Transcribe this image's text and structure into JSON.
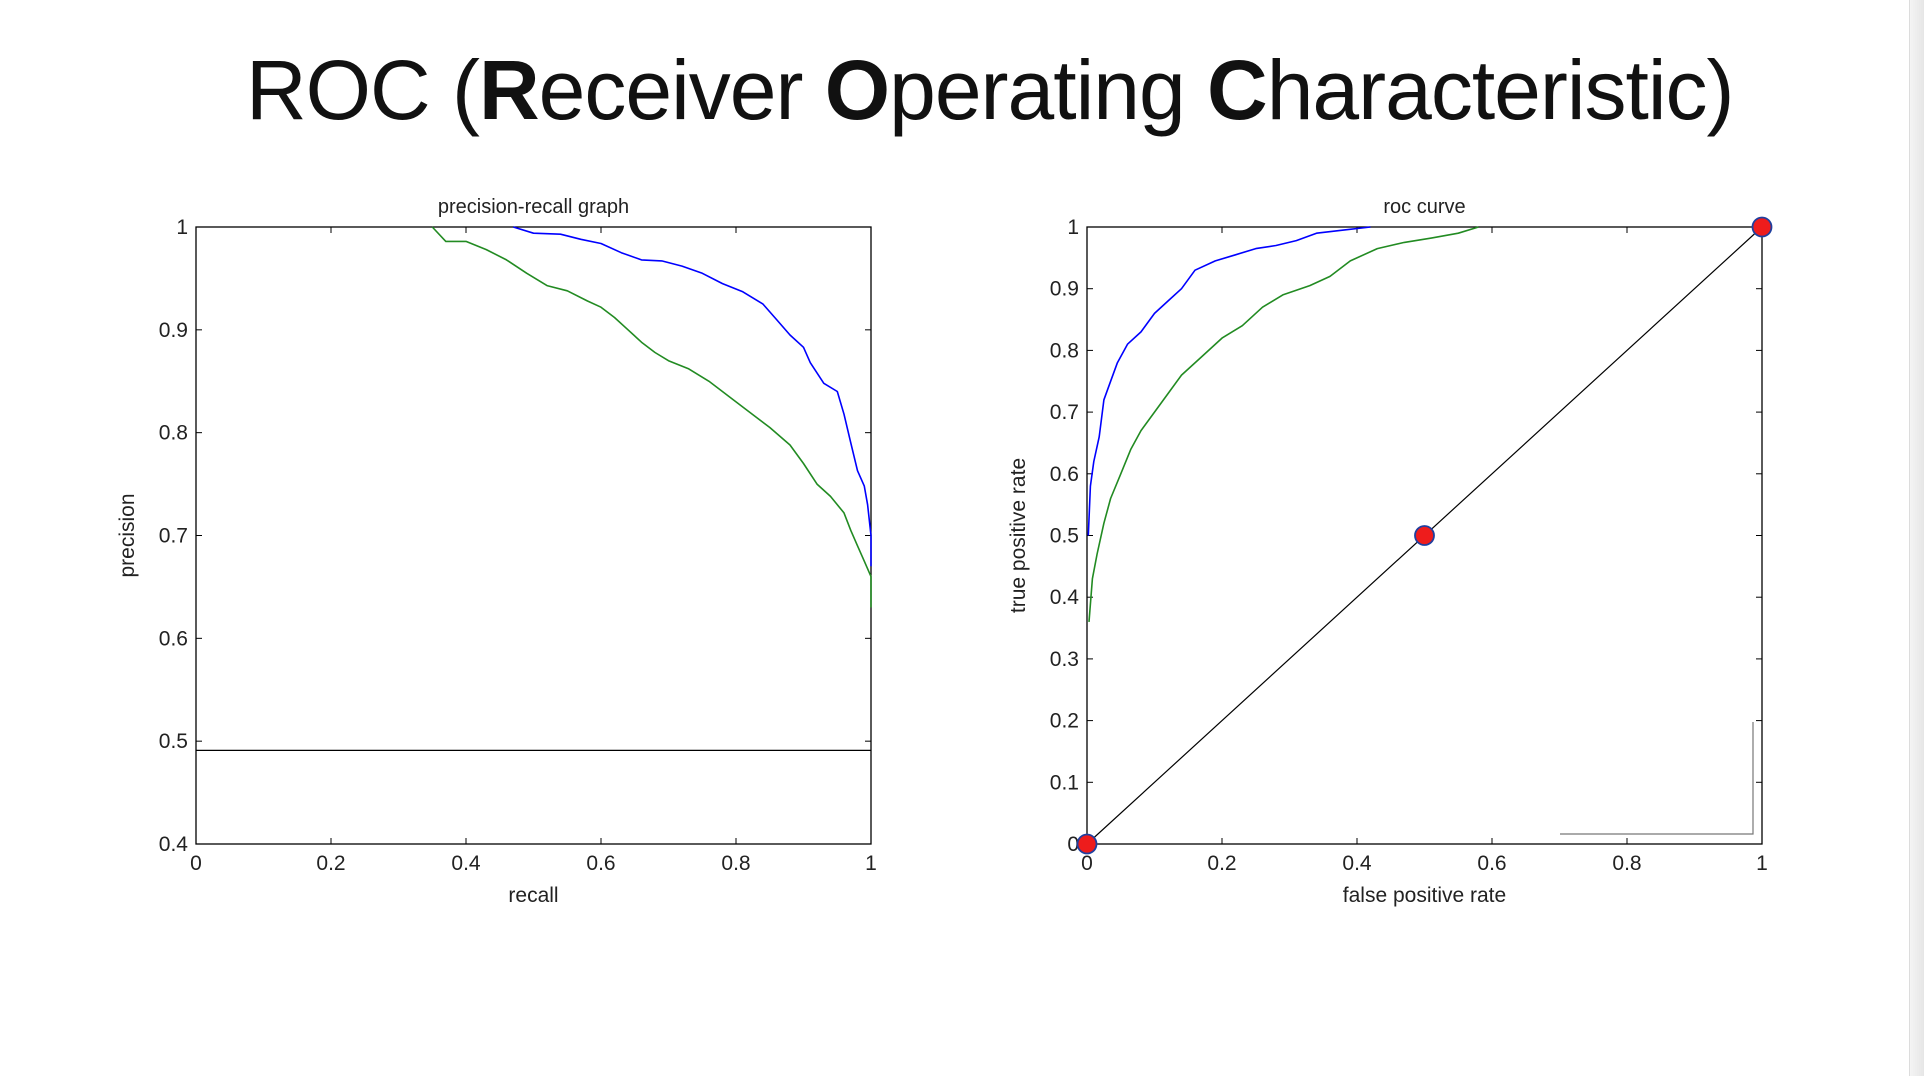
{
  "slide": {
    "title_parts": [
      {
        "text": "ROC (",
        "bold": false
      },
      {
        "text": "R",
        "bold": true
      },
      {
        "text": "eceiver ",
        "bold": false
      },
      {
        "text": "O",
        "bold": true
      },
      {
        "text": "perating ",
        "bold": false
      },
      {
        "text": "C",
        "bold": true
      },
      {
        "text": "haracteristic)",
        "bold": false
      }
    ]
  },
  "chart_data": [
    {
      "type": "line",
      "title": "precision-recall graph",
      "xlabel": "recall",
      "ylabel": "precision",
      "xlim": [
        0,
        1
      ],
      "ylim": [
        0.4,
        1
      ],
      "xticks": [
        0,
        0.2,
        0.4,
        0.6,
        0.8,
        1
      ],
      "xtick_labels": [
        "0",
        "0.2",
        "0.4",
        "0.6",
        "0.8",
        "1"
      ],
      "yticks": [
        0.4,
        0.5,
        0.6,
        0.7,
        0.8,
        0.9,
        1
      ],
      "ytick_labels": [
        "0.4",
        "0.5",
        "0.6",
        "0.7",
        "0.8",
        "0.9",
        "1"
      ],
      "grid": false,
      "series": [
        {
          "color": "#0000ff",
          "points": [
            [
              0.47,
              1.0
            ],
            [
              0.5,
              0.994
            ],
            [
              0.54,
              0.993
            ],
            [
              0.57,
              0.988
            ],
            [
              0.6,
              0.984
            ],
            [
              0.63,
              0.975
            ],
            [
              0.66,
              0.968
            ],
            [
              0.69,
              0.967
            ],
            [
              0.72,
              0.962
            ],
            [
              0.75,
              0.955
            ],
            [
              0.78,
              0.945
            ],
            [
              0.81,
              0.937
            ],
            [
              0.84,
              0.925
            ],
            [
              0.86,
              0.91
            ],
            [
              0.88,
              0.895
            ],
            [
              0.9,
              0.883
            ],
            [
              0.91,
              0.868
            ],
            [
              0.93,
              0.848
            ],
            [
              0.95,
              0.84
            ],
            [
              0.96,
              0.818
            ],
            [
              0.97,
              0.79
            ],
            [
              0.98,
              0.763
            ],
            [
              0.99,
              0.748
            ],
            [
              0.995,
              0.73
            ],
            [
              1.0,
              0.7
            ],
            [
              1.0,
              0.67
            ]
          ]
        },
        {
          "color": "#228b22",
          "points": [
            [
              0.35,
              1.0
            ],
            [
              0.37,
              0.986
            ],
            [
              0.4,
              0.986
            ],
            [
              0.43,
              0.978
            ],
            [
              0.46,
              0.968
            ],
            [
              0.49,
              0.955
            ],
            [
              0.52,
              0.943
            ],
            [
              0.55,
              0.938
            ],
            [
              0.58,
              0.928
            ],
            [
              0.6,
              0.922
            ],
            [
              0.62,
              0.912
            ],
            [
              0.64,
              0.9
            ],
            [
              0.66,
              0.888
            ],
            [
              0.68,
              0.878
            ],
            [
              0.7,
              0.87
            ],
            [
              0.73,
              0.862
            ],
            [
              0.76,
              0.85
            ],
            [
              0.79,
              0.835
            ],
            [
              0.82,
              0.82
            ],
            [
              0.85,
              0.805
            ],
            [
              0.88,
              0.788
            ],
            [
              0.9,
              0.77
            ],
            [
              0.92,
              0.75
            ],
            [
              0.94,
              0.738
            ],
            [
              0.96,
              0.722
            ],
            [
              0.97,
              0.705
            ],
            [
              0.98,
              0.69
            ],
            [
              0.99,
              0.675
            ],
            [
              1.0,
              0.66
            ],
            [
              1.0,
              0.63
            ]
          ]
        },
        {
          "color": "#000000",
          "points": [
            [
              0,
              0.491
            ],
            [
              1,
              0.491
            ]
          ]
        }
      ]
    },
    {
      "type": "line",
      "title": "roc curve",
      "xlabel": "false positive rate",
      "ylabel": "true positive rate",
      "xlim": [
        0,
        1
      ],
      "ylim": [
        0,
        1
      ],
      "xticks": [
        0,
        0.2,
        0.4,
        0.6,
        0.8,
        1
      ],
      "xtick_labels": [
        "0",
        "0.2",
        "0.4",
        "0.6",
        "0.8",
        "1"
      ],
      "yticks": [
        0,
        0.1,
        0.2,
        0.3,
        0.4,
        0.5,
        0.6,
        0.7,
        0.8,
        0.9,
        1
      ],
      "ytick_labels": [
        "0",
        "0.1",
        "0.2",
        "0.3",
        "0.4",
        "0.5",
        "0.6",
        "0.7",
        "0.8",
        "0.9",
        "1"
      ],
      "grid": false,
      "series": [
        {
          "color": "#0000ff",
          "points": [
            [
              0.002,
              0.5
            ],
            [
              0.005,
              0.58
            ],
            [
              0.01,
              0.62
            ],
            [
              0.018,
              0.66
            ],
            [
              0.025,
              0.72
            ],
            [
              0.035,
              0.75
            ],
            [
              0.045,
              0.78
            ],
            [
              0.06,
              0.81
            ],
            [
              0.08,
              0.83
            ],
            [
              0.1,
              0.86
            ],
            [
              0.12,
              0.88
            ],
            [
              0.14,
              0.9
            ],
            [
              0.16,
              0.93
            ],
            [
              0.19,
              0.945
            ],
            [
              0.22,
              0.955
            ],
            [
              0.25,
              0.965
            ],
            [
              0.28,
              0.97
            ],
            [
              0.31,
              0.978
            ],
            [
              0.34,
              0.99
            ],
            [
              0.38,
              0.995
            ],
            [
              0.42,
              1.0
            ]
          ]
        },
        {
          "color": "#228b22",
          "points": [
            [
              0.003,
              0.36
            ],
            [
              0.008,
              0.43
            ],
            [
              0.015,
              0.47
            ],
            [
              0.025,
              0.52
            ],
            [
              0.035,
              0.56
            ],
            [
              0.05,
              0.6
            ],
            [
              0.065,
              0.64
            ],
            [
              0.08,
              0.67
            ],
            [
              0.1,
              0.7
            ],
            [
              0.12,
              0.73
            ],
            [
              0.14,
              0.76
            ],
            [
              0.17,
              0.79
            ],
            [
              0.2,
              0.82
            ],
            [
              0.23,
              0.84
            ],
            [
              0.26,
              0.87
            ],
            [
              0.29,
              0.89
            ],
            [
              0.33,
              0.905
            ],
            [
              0.36,
              0.92
            ],
            [
              0.39,
              0.945
            ],
            [
              0.43,
              0.965
            ],
            [
              0.47,
              0.975
            ],
            [
              0.51,
              0.982
            ],
            [
              0.55,
              0.99
            ],
            [
              0.58,
              1.0
            ]
          ]
        },
        {
          "color": "#000000",
          "points": [
            [
              0,
              0
            ],
            [
              1,
              1
            ]
          ]
        }
      ],
      "markers": [
        [
          0,
          0
        ],
        [
          0.5,
          0.5
        ],
        [
          1,
          1
        ]
      ]
    }
  ]
}
